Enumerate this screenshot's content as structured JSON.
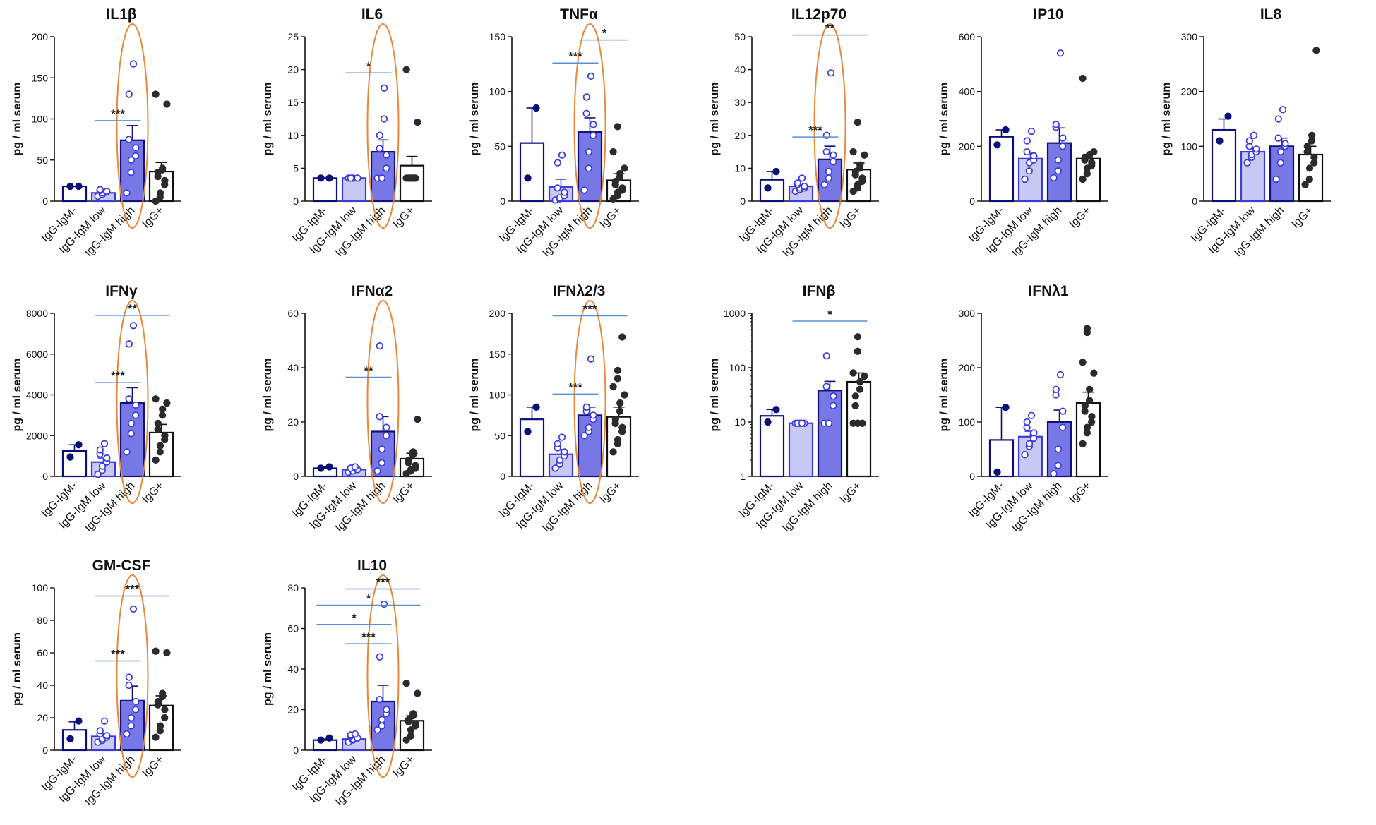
{
  "colors": {
    "axis": "#111111",
    "group_stroke": [
      "#0a0f7a",
      "#3a3adf",
      "#11117a",
      "#111111"
    ],
    "group_fill": [
      "#ffffff",
      "#c8c8f4",
      "#7777e6",
      "#ffffff"
    ],
    "point_fill": [
      "#0a0f7a",
      "#ffffff",
      "#ffffff",
      "#2b2b2b"
    ],
    "point_stroke": [
      "#0a0f7a",
      "#3a3adf",
      "#3a3adf",
      "#2b2b2b"
    ],
    "significance_line": "#5a8fd6",
    "highlight_ellipse": "#e9883a"
  },
  "chart_data": [
    {
      "type": "bar",
      "title": "IL1β",
      "ylabel": "pg / ml serum",
      "ylim": [
        0,
        200
      ],
      "yticks": [
        0,
        50,
        100,
        150,
        200
      ],
      "categories": [
        "IgG-IgM-",
        "IgG-IgM low",
        "IgG-IgM high",
        "IgG+"
      ],
      "means": [
        18,
        10,
        74,
        36
      ],
      "sem": [
        0,
        2,
        18,
        11
      ],
      "points": [
        [
          18,
          18
        ],
        [
          6,
          8,
          10,
          11,
          12,
          13,
          14
        ],
        [
          10,
          35,
          50,
          55,
          65,
          75,
          130,
          167
        ],
        [
          0,
          5,
          10,
          20,
          25,
          30,
          35,
          38,
          40,
          118,
          130
        ]
      ],
      "significance": [
        {
          "from": 1,
          "to": 2,
          "label": "***",
          "y": 98
        }
      ],
      "highlight": 2
    },
    {
      "type": "bar",
      "title": "IL6",
      "ylabel": "pg / ml serum",
      "ylim": [
        0,
        25
      ],
      "yticks": [
        0,
        5,
        10,
        15,
        20,
        25
      ],
      "categories": [
        "IgG-IgM-",
        "IgG-IgM low",
        "IgG-IgM high",
        "IgG+"
      ],
      "means": [
        3.5,
        3.5,
        7.5,
        5.4
      ],
      "sem": [
        0,
        0,
        1.8,
        1.4
      ],
      "points": [
        [
          3.5,
          3.5
        ],
        [
          3.5,
          3.5,
          3.5,
          3.5,
          3.5,
          3.5,
          3.5
        ],
        [
          3.5,
          3.5,
          3.5,
          5,
          7,
          8,
          10,
          12.5,
          17.2
        ],
        [
          3.5,
          3.5,
          3.5,
          3.5,
          3.5,
          3.5,
          3.5,
          3.5,
          3.5,
          12,
          20
        ]
      ],
      "significance": [
        {
          "from": 1,
          "to": 2,
          "label": "*",
          "y": 19.5
        }
      ],
      "highlight": 2
    },
    {
      "type": "bar",
      "title": "TNFα",
      "ylabel": "pg / ml serum",
      "ylim": [
        0,
        150
      ],
      "yticks": [
        0,
        50,
        100,
        150
      ],
      "categories": [
        "IgG-IgM-",
        "IgG-IgM low",
        "IgG-IgM high",
        "IgG+"
      ],
      "means": [
        53,
        13,
        63,
        19
      ],
      "sem": [
        32,
        7,
        13,
        6
      ],
      "points": [
        [
          21,
          85
        ],
        [
          1,
          2,
          3,
          5,
          8,
          12,
          35,
          42
        ],
        [
          10,
          30,
          45,
          60,
          70,
          80,
          95,
          114
        ],
        [
          2,
          5,
          8,
          10,
          12,
          15,
          18,
          22,
          25,
          30,
          45,
          68
        ]
      ],
      "significance": [
        {
          "from": 1,
          "to": 2,
          "label": "***",
          "y": 126
        },
        {
          "from": 2,
          "to": 3,
          "label": "*",
          "y": 147
        }
      ],
      "highlight": 2
    },
    {
      "type": "bar",
      "title": "IL12p70",
      "ylabel": "pg / ml serum",
      "ylim": [
        0,
        50
      ],
      "yticks": [
        0,
        10,
        20,
        30,
        40,
        50
      ],
      "categories": [
        "IgG-IgM-",
        "IgG-IgM low",
        "IgG-IgM high",
        "IgG+"
      ],
      "means": [
        6.5,
        4.5,
        12.7,
        9.6
      ],
      "sem": [
        2.5,
        0.5,
        4,
        2
      ],
      "points": [
        [
          4,
          9
        ],
        [
          3,
          3.5,
          4,
          4,
          4.5,
          5,
          5.5,
          7
        ],
        [
          5,
          7,
          9,
          12,
          14,
          15,
          20,
          39
        ],
        [
          3,
          4,
          5,
          6,
          7,
          8,
          9,
          10,
          11,
          14,
          15,
          24
        ]
      ],
      "significance": [
        {
          "from": 1,
          "to": 2,
          "label": "***",
          "y": 19.5
        },
        {
          "from": 1,
          "to": 3,
          "label": "**",
          "y": 50.5
        }
      ],
      "highlight": 2
    },
    {
      "type": "bar",
      "title": "IP10",
      "ylabel": "pg / ml serum",
      "ylim": [
        0,
        600
      ],
      "yticks": [
        0,
        200,
        400,
        600
      ],
      "categories": [
        "IgG-IgM-",
        "IgG-IgM low",
        "IgG-IgM high",
        "IgG+"
      ],
      "means": [
        235,
        155,
        212,
        155
      ],
      "sem": [
        25,
        20,
        55,
        15
      ],
      "points": [
        [
          205,
          260
        ],
        [
          80,
          110,
          140,
          150,
          165,
          180,
          220,
          255
        ],
        [
          85,
          110,
          150,
          200,
          230,
          270,
          280,
          540
        ],
        [
          80,
          100,
          120,
          130,
          140,
          150,
          160,
          165,
          170,
          180,
          448
        ]
      ],
      "significance": [],
      "highlight": null
    },
    {
      "type": "bar",
      "title": "IL8",
      "ylabel": "pg / ml serum",
      "ylim": [
        0,
        300
      ],
      "yticks": [
        0,
        100,
        200,
        300
      ],
      "categories": [
        "IgG-IgM-",
        "IgG-IgM low",
        "IgG-IgM high",
        "IgG+"
      ],
      "means": [
        130,
        90,
        100,
        85
      ],
      "sem": [
        20,
        8,
        15,
        15
      ],
      "points": [
        [
          110,
          155
        ],
        [
          70,
          80,
          85,
          90,
          95,
          100,
          110,
          120
        ],
        [
          40,
          70,
          90,
          100,
          105,
          115,
          150,
          167
        ],
        [
          30,
          40,
          60,
          70,
          80,
          90,
          100,
          110,
          120,
          275
        ]
      ],
      "significance": [],
      "highlight": null
    },
    {
      "type": "bar",
      "title": "IFNγ",
      "ylabel": "pg / ml serum",
      "ylim": [
        0,
        8000
      ],
      "yticks": [
        0,
        2000,
        4000,
        6000,
        8000
      ],
      "categories": [
        "IgG-IgM-",
        "IgG-IgM low",
        "IgG-IgM high",
        "IgG+"
      ],
      "means": [
        1250,
        700,
        3600,
        2150
      ],
      "sem": [
        300,
        200,
        750,
        400
      ],
      "points": [
        [
          950,
          1550
        ],
        [
          100,
          300,
          500,
          700,
          900,
          1100,
          1300,
          1600
        ],
        [
          1200,
          2100,
          2600,
          3000,
          3500,
          3800,
          6500,
          7400
        ],
        [
          800,
          1200,
          1500,
          1800,
          2000,
          2300,
          2600,
          3000,
          3300,
          3600,
          3800
        ]
      ],
      "significance": [
        {
          "from": 1,
          "to": 2,
          "label": "***",
          "y": 4600
        },
        {
          "from": 1,
          "to": 3,
          "label": "**",
          "y": 7900
        }
      ],
      "highlight": 2
    },
    {
      "type": "bar",
      "title": "IFNα2",
      "ylabel": "pg / ml serum",
      "ylim": [
        0,
        60
      ],
      "yticks": [
        0,
        20,
        40,
        60
      ],
      "categories": [
        "IgG-IgM-",
        "IgG-IgM low",
        "IgG-IgM high",
        "IgG+"
      ],
      "means": [
        3,
        2.5,
        16.5,
        6.5
      ],
      "sem": [
        0.5,
        0.5,
        5.5,
        2
      ],
      "points": [
        [
          3,
          3.5
        ],
        [
          1.5,
          2,
          2,
          2.5,
          2.5,
          3,
          3,
          3.5
        ],
        [
          2,
          5,
          10,
          15,
          18,
          22,
          48
        ],
        [
          1,
          2,
          2.5,
          3,
          4,
          5,
          6,
          8,
          9,
          21
        ]
      ],
      "significance": [
        {
          "from": 1,
          "to": 2,
          "label": "**",
          "y": 36.5
        }
      ],
      "highlight": 2
    },
    {
      "type": "bar",
      "title": "IFNλ2/3",
      "ylabel": "pg / ml serum",
      "ylim": [
        0,
        200
      ],
      "yticks": [
        0,
        50,
        100,
        150,
        200
      ],
      "categories": [
        "IgG-IgM-",
        "IgG-IgM low",
        "IgG-IgM high",
        "IgG+"
      ],
      "means": [
        70,
        27,
        75,
        73
      ],
      "sem": [
        15,
        6,
        10,
        12
      ],
      "points": [
        [
          55,
          85
        ],
        [
          10,
          15,
          20,
          25,
          30,
          35,
          40,
          48
        ],
        [
          50,
          55,
          60,
          70,
          75,
          80,
          85,
          144
        ],
        [
          30,
          40,
          45,
          55,
          60,
          65,
          70,
          80,
          90,
          100,
          110,
          120,
          130,
          171
        ]
      ],
      "significance": [
        {
          "from": 1,
          "to": 2,
          "label": "***",
          "y": 101
        },
        {
          "from": 1,
          "to": 3,
          "label": "***",
          "y": 197
        }
      ],
      "highlight": 2
    },
    {
      "type": "bar",
      "title": "IFNβ",
      "ylabel": "pg / ml serum",
      "scale": "log",
      "ylim": [
        1,
        1000
      ],
      "yticks": [
        1,
        10,
        100,
        1000
      ],
      "categories": [
        "IgG-IgM-",
        "IgG-IgM low",
        "IgG-IgM high",
        "IgG+"
      ],
      "means": [
        13,
        9.5,
        38,
        55
      ],
      "sem": [
        4,
        0,
        18,
        25
      ],
      "points": [
        [
          10,
          17
        ],
        [
          9.5,
          9.5,
          9.5,
          9.5,
          9.5,
          9.5,
          9.5,
          9.5
        ],
        [
          9.5,
          9.5,
          9.5,
          20,
          30,
          45,
          165
        ],
        [
          9.5,
          9.5,
          9.5,
          9.5,
          9.5,
          20,
          30,
          40,
          55,
          70,
          80,
          200,
          370
        ]
      ],
      "significance": [
        {
          "from": 1,
          "to": 3,
          "label": "*",
          "y": 720
        }
      ],
      "highlight": null
    },
    {
      "type": "bar",
      "title": "IFNλ1",
      "ylabel": "pg / ml serum",
      "ylim": [
        0,
        300
      ],
      "yticks": [
        0,
        100,
        200,
        300
      ],
      "categories": [
        "IgG-IgM-",
        "IgG-IgM low",
        "IgG-IgM high",
        "IgG+"
      ],
      "means": [
        67,
        73,
        100,
        135
      ],
      "sem": [
        60,
        10,
        22,
        20
      ],
      "points": [
        [
          8,
          127
        ],
        [
          40,
          55,
          60,
          70,
          80,
          90,
          100,
          112
        ],
        [
          5,
          20,
          50,
          90,
          120,
          150,
          160,
          187
        ],
        [
          60,
          80,
          90,
          100,
          110,
          120,
          130,
          140,
          160,
          190,
          210,
          265,
          272
        ]
      ],
      "significance": [],
      "highlight": null
    },
    {
      "type": "bar",
      "title": "GM-CSF",
      "ylabel": "pg / ml serum",
      "ylim": [
        0,
        100
      ],
      "yticks": [
        0,
        20,
        40,
        60,
        80,
        100
      ],
      "categories": [
        "IgG-IgM-",
        "IgG-IgM low",
        "IgG-IgM high",
        "IgG+"
      ],
      "means": [
        12.5,
        8.5,
        30.5,
        27.5
      ],
      "sem": [
        5,
        2,
        9,
        6
      ],
      "points": [
        [
          7,
          18
        ],
        [
          5,
          6,
          7,
          8,
          9,
          10,
          12,
          18
        ],
        [
          10,
          15,
          20,
          25,
          30,
          40,
          45,
          87
        ],
        [
          8,
          12,
          15,
          20,
          25,
          28,
          30,
          33,
          35,
          60,
          61
        ]
      ],
      "significance": [
        {
          "from": 1,
          "to": 2,
          "label": "***",
          "y": 55
        },
        {
          "from": 1,
          "to": 3,
          "label": "***",
          "y": 95
        }
      ],
      "highlight": 2
    },
    {
      "type": "bar",
      "title": "IL10",
      "ylabel": "pg / ml serum",
      "ylim": [
        0,
        80
      ],
      "yticks": [
        0,
        20,
        40,
        60,
        80
      ],
      "categories": [
        "IgG-IgM-",
        "IgG-IgM low",
        "IgG-IgM high",
        "IgG+"
      ],
      "means": [
        5,
        5.5,
        24,
        14.5
      ],
      "sem": [
        0.5,
        1,
        8,
        2.5
      ],
      "points": [
        [
          5,
          6
        ],
        [
          4,
          5,
          5.5,
          6,
          6,
          7,
          7.5,
          8
        ],
        [
          10,
          12,
          15,
          18,
          20,
          25,
          46,
          72
        ],
        [
          5,
          7,
          10,
          12,
          13,
          14,
          15,
          17,
          18,
          28,
          33
        ]
      ],
      "significance": [
        {
          "from": 1,
          "to": 2,
          "label": "***",
          "y": 52.5
        },
        {
          "from": 0,
          "to": 2,
          "label": "*",
          "y": 62
        },
        {
          "from": 0,
          "to": 3,
          "label": "*",
          "y": 71.5
        },
        {
          "from": 1,
          "to": 3,
          "label": "***",
          "y": 79.5
        }
      ],
      "highlight": 2
    }
  ]
}
